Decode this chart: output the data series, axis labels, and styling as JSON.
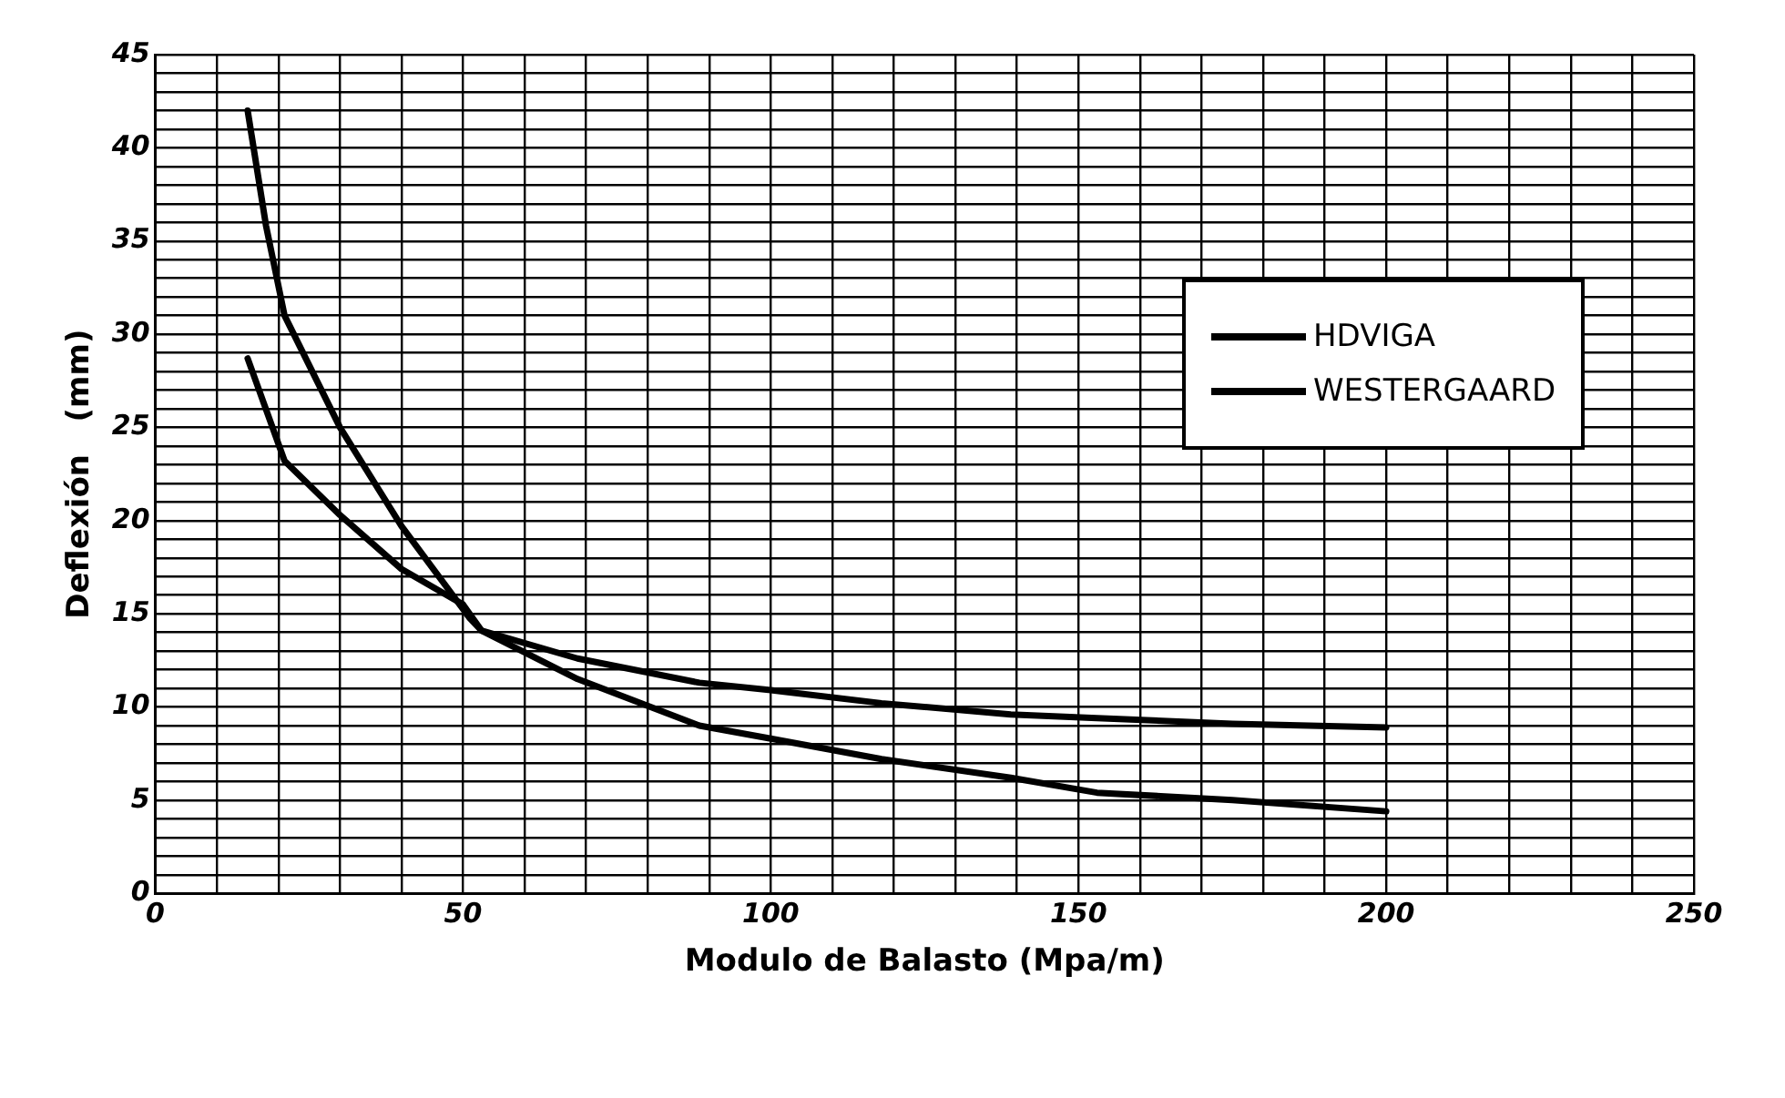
{
  "chart_data": {
    "type": "line",
    "xlabel": "Modulo de Balasto (Mpa/m)",
    "ylabel": "Deflexión   (mm)",
    "xlim": [
      0,
      250
    ],
    "ylim": [
      0,
      45
    ],
    "xticks": [
      0,
      {
        "value": 10,
        "label": null
      },
      {
        "value": 20,
        "label": null
      },
      {
        "value": 30,
        "label": null
      },
      {
        "value": 40,
        "label": null
      },
      50,
      {
        "value": 60,
        "label": null
      },
      {
        "value": 70,
        "label": null
      },
      {
        "value": 80,
        "label": null
      },
      {
        "value": 90,
        "label": null
      },
      100,
      {
        "value": 110,
        "label": null
      },
      {
        "value": 120,
        "label": null
      },
      {
        "value": 130,
        "label": null
      },
      {
        "value": 140,
        "label": null
      },
      150,
      {
        "value": 160,
        "label": null
      },
      {
        "value": 170,
        "label": null
      },
      {
        "value": 180,
        "label": null
      },
      {
        "value": 190,
        "label": null
      },
      200,
      {
        "value": 210,
        "label": null
      },
      {
        "value": 220,
        "label": null
      },
      {
        "value": 230,
        "label": null
      },
      {
        "value": 240,
        "label": null
      },
      250
    ],
    "yticks": [
      0,
      {
        "value": 1,
        "label": null
      },
      {
        "value": 2,
        "label": null
      },
      {
        "value": 3,
        "label": null
      },
      {
        "value": 4,
        "label": null
      },
      5,
      {
        "value": 6,
        "label": null
      },
      {
        "value": 7,
        "label": null
      },
      {
        "value": 8,
        "label": null
      },
      {
        "value": 9,
        "label": null
      },
      10,
      {
        "value": 11,
        "label": null
      },
      {
        "value": 12,
        "label": null
      },
      {
        "value": 13,
        "label": null
      },
      {
        "value": 14,
        "label": null
      },
      15,
      {
        "value": 16,
        "label": null
      },
      {
        "value": 17,
        "label": null
      },
      {
        "value": 18,
        "label": null
      },
      {
        "value": 19,
        "label": null
      },
      20,
      {
        "value": 21,
        "label": null
      },
      {
        "value": 22,
        "label": null
      },
      {
        "value": 23,
        "label": null
      },
      {
        "value": 24,
        "label": null
      },
      25,
      {
        "value": 26,
        "label": null
      },
      {
        "value": 27,
        "label": null
      },
      {
        "value": 28,
        "label": null
      },
      {
        "value": 29,
        "label": null
      },
      30,
      {
        "value": 31,
        "label": null
      },
      {
        "value": 32,
        "label": null
      },
      {
        "value": 33,
        "label": null
      },
      {
        "value": 34,
        "label": null
      },
      35,
      {
        "value": 36,
        "label": null
      },
      {
        "value": 37,
        "label": null
      },
      {
        "value": 38,
        "label": null
      },
      {
        "value": 39,
        "label": null
      },
      40,
      {
        "value": 41,
        "label": null
      },
      {
        "value": 42,
        "label": null
      },
      {
        "value": 43,
        "label": null
      },
      {
        "value": 44,
        "label": null
      },
      45
    ],
    "grid": true,
    "legend": "right",
    "marker": "none",
    "line_style": "solid",
    "series": [
      {
        "name": "HDVIGA",
        "color": "#000000",
        "x": [
          15,
          18,
          21,
          30,
          40,
          51,
          53,
          68.6,
          88.4,
          100,
          118,
          139,
          153,
          175,
          200
        ],
        "values": [
          42,
          35.8,
          31,
          25,
          19.7,
          14.8,
          14.1,
          11.5,
          9,
          8.3,
          7.2,
          6.2,
          5.4,
          5,
          4.4
        ]
      },
      {
        "name": "WESTERGAARD",
        "color": "#000000",
        "x": [
          15,
          21,
          30,
          40,
          50,
          53,
          68.6,
          88.4,
          100,
          118,
          139,
          153,
          175,
          200
        ],
        "values": [
          28.7,
          23.2,
          20.3,
          17.4,
          15.5,
          14.1,
          12.6,
          11.3,
          10.9,
          10.2,
          9.6,
          9.4,
          9.1,
          8.9
        ]
      }
    ]
  }
}
